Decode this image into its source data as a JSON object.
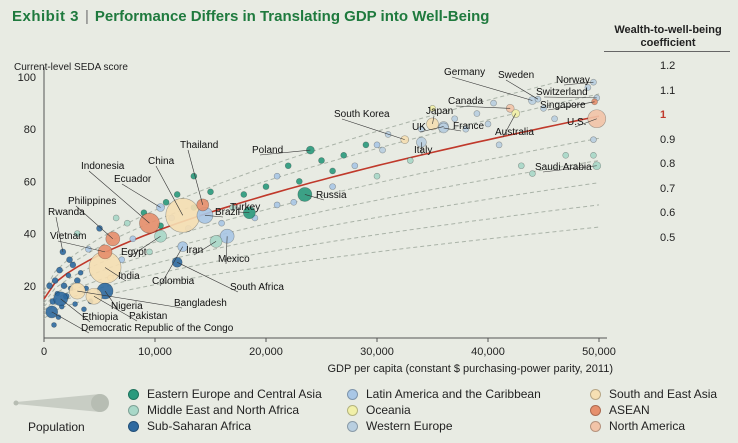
{
  "header": {
    "exhibit": "Exhibit 3",
    "title": "Performance Differs in Translating GDP into Well-Being",
    "coef_title_line1": "Wealth-to-well-being",
    "coef_title_line2": "coefficient"
  },
  "colors": {
    "eeca": "#2a9a7d",
    "mena": "#a8d8c8",
    "ssa": "#2e6aa0",
    "latam": "#a9c7e6",
    "oceania": "#f1f0a8",
    "weur": "#b9cfe0",
    "sea": "#f6dfb3",
    "asean": "#e68f6c",
    "na": "#f2c4a8",
    "curve": "#c0392b",
    "guide": "#aab3a8"
  },
  "chart_data": {
    "type": "scatter",
    "xlabel": "GDP per capita (constant $ purchasing-power parity, 2011)",
    "ylabel": "Current-level SEDA score",
    "xlim": [
      0,
      50000
    ],
    "ylim": [
      0,
      100
    ],
    "xticks": [
      0,
      10000,
      20000,
      30000,
      40000,
      50000
    ],
    "xtick_labels": [
      "0",
      "10,000",
      "20,000",
      "30,000",
      "40,000",
      "50,000"
    ],
    "yticks": [
      20,
      40,
      60,
      80,
      100
    ],
    "ytick_labels": [
      "20",
      "40",
      "60",
      "80",
      "100"
    ],
    "coefficients": [
      "1.2",
      "1.1",
      "1",
      "0.9",
      "0.8",
      "0.7",
      "0.6",
      "0.5"
    ],
    "highlight_coefficient": "1",
    "regions": [
      {
        "key": "eeca",
        "label": "Eastern Europe and Central Asia"
      },
      {
        "key": "latam",
        "label": "Latin America and the Caribbean"
      },
      {
        "key": "sea",
        "label": "South and East Asia"
      },
      {
        "key": "mena",
        "label": "Middle East and North Africa"
      },
      {
        "key": "oceania",
        "label": "Oceania"
      },
      {
        "key": "asean",
        "label": "ASEAN"
      },
      {
        "key": "ssa",
        "label": "Sub-Saharan Africa"
      },
      {
        "key": "weur",
        "label": "Western Europe"
      },
      {
        "key": "na",
        "label": "North America"
      }
    ],
    "population_label": "Population",
    "labeled_countries": [
      {
        "name": "Germany",
        "x": 44000,
        "y": 91,
        "r": 4,
        "region": "weur"
      },
      {
        "name": "Sweden",
        "x": 44500,
        "y": 91.5,
        "r": 3,
        "region": "weur"
      },
      {
        "name": "Norway",
        "x": 49500,
        "y": 98,
        "r": 3,
        "region": "weur"
      },
      {
        "name": "Switzerland",
        "x": 49800,
        "y": 92,
        "r": 3,
        "region": "weur"
      },
      {
        "name": "Singapore",
        "x": 49600,
        "y": 90.5,
        "r": 3,
        "region": "asean"
      },
      {
        "name": "Canada",
        "x": 42000,
        "y": 88,
        "r": 4,
        "region": "na"
      },
      {
        "name": "Australia",
        "x": 42500,
        "y": 86,
        "r": 4,
        "region": "oceania"
      },
      {
        "name": "U.S.",
        "x": 49800,
        "y": 84,
        "r": 9,
        "region": "na"
      },
      {
        "name": "South Korea",
        "x": 32500,
        "y": 76,
        "r": 4,
        "region": "sea"
      },
      {
        "name": "Japan",
        "x": 35000,
        "y": 82,
        "r": 6,
        "region": "sea"
      },
      {
        "name": "UK",
        "x": 36000,
        "y": 81,
        "r": 5,
        "region": "weur"
      },
      {
        "name": "France",
        "x": 36000,
        "y": 80.5,
        "r": 5,
        "region": "weur"
      },
      {
        "name": "Italy",
        "x": 34000,
        "y": 75,
        "r": 5,
        "region": "weur"
      },
      {
        "name": "Saudi Arabia",
        "x": 49800,
        "y": 66,
        "r": 4,
        "region": "mena"
      },
      {
        "name": "Poland",
        "x": 24000,
        "y": 72,
        "r": 4,
        "region": "eeca"
      },
      {
        "name": "Russia",
        "x": 23500,
        "y": 55,
        "r": 7,
        "region": "eeca"
      },
      {
        "name": "Thailand",
        "x": 14300,
        "y": 51,
        "r": 6,
        "region": "asean"
      },
      {
        "name": "China",
        "x": 12500,
        "y": 47,
        "r": 17,
        "region": "sea"
      },
      {
        "name": "Indonesia",
        "x": 9500,
        "y": 44,
        "r": 10,
        "region": "asean"
      },
      {
        "name": "Ecuador",
        "x": 10500,
        "y": 50,
        "r": 4,
        "region": "latam"
      },
      {
        "name": "Philippines",
        "x": 6200,
        "y": 38,
        "r": 7,
        "region": "asean"
      },
      {
        "name": "Brazil",
        "x": 14500,
        "y": 47,
        "r": 8,
        "region": "latam"
      },
      {
        "name": "Turkey",
        "x": 18500,
        "y": 48,
        "r": 6,
        "region": "eeca"
      },
      {
        "name": "Egypt",
        "x": 10500,
        "y": 39,
        "r": 6,
        "region": "mena"
      },
      {
        "name": "Iran",
        "x": 15500,
        "y": 37,
        "r": 6,
        "region": "mena"
      },
      {
        "name": "Mexico",
        "x": 16500,
        "y": 39,
        "r": 7,
        "region": "latam"
      },
      {
        "name": "Rwanda",
        "x": 1700,
        "y": 33,
        "r": 3,
        "region": "ssa"
      },
      {
        "name": "Vietnam",
        "x": 5500,
        "y": 33,
        "r": 7,
        "region": "asean"
      },
      {
        "name": "India",
        "x": 5500,
        "y": 27,
        "r": 16,
        "region": "sea"
      },
      {
        "name": "Colombia",
        "x": 12500,
        "y": 35,
        "r": 5,
        "region": "latam"
      },
      {
        "name": "South Africa",
        "x": 12000,
        "y": 29,
        "r": 5,
        "region": "ssa"
      },
      {
        "name": "Nigeria",
        "x": 5500,
        "y": 18,
        "r": 8,
        "region": "ssa"
      },
      {
        "name": "Bangladesh",
        "x": 3000,
        "y": 18,
        "r": 8,
        "region": "sea"
      },
      {
        "name": "Ethiopia",
        "x": 1500,
        "y": 15,
        "r": 7,
        "region": "ssa"
      },
      {
        "name": "Pakistan",
        "x": 4500,
        "y": 16,
        "r": 8,
        "region": "sea"
      },
      {
        "name": "Democratic Republic of the Congo",
        "x": 700,
        "y": 10,
        "r": 6,
        "region": "ssa"
      }
    ],
    "other_points": [
      [
        500,
        20,
        "ssa",
        3
      ],
      [
        800,
        14,
        "ssa",
        3
      ],
      [
        1000,
        22,
        "ssa",
        3
      ],
      [
        1200,
        17,
        "ssa",
        2.5
      ],
      [
        1400,
        26,
        "ssa",
        3
      ],
      [
        1600,
        12,
        "ssa",
        2.5
      ],
      [
        1800,
        20,
        "ssa",
        3
      ],
      [
        2000,
        16,
        "ssa",
        3
      ],
      [
        2200,
        24,
        "ssa",
        2.5
      ],
      [
        2400,
        19,
        "ssa",
        2.5
      ],
      [
        2600,
        28,
        "ssa",
        3
      ],
      [
        2800,
        13,
        "ssa",
        2.5
      ],
      [
        3000,
        22,
        "ssa",
        3
      ],
      [
        3300,
        25,
        "ssa",
        2.5
      ],
      [
        3600,
        11,
        "ssa",
        2.5
      ],
      [
        900,
        5,
        "ssa",
        2.5
      ],
      [
        1300,
        8,
        "ssa",
        2.5
      ],
      [
        2300,
        30,
        "ssa",
        3
      ],
      [
        3800,
        19,
        "ssa",
        2.5
      ],
      [
        4200,
        14,
        "ssa",
        2.5
      ],
      [
        3000,
        40,
        "mena",
        3
      ],
      [
        4000,
        34,
        "latam",
        3
      ],
      [
        5000,
        42,
        "ssa",
        3
      ],
      [
        6000,
        23,
        "sea",
        3
      ],
      [
        7000,
        30,
        "latam",
        3
      ],
      [
        7500,
        44,
        "mena",
        3
      ],
      [
        8000,
        38,
        "latam",
        3
      ],
      [
        9000,
        48,
        "eeca",
        3
      ],
      [
        9500,
        33,
        "mena",
        3
      ],
      [
        10500,
        43,
        "eeca",
        3
      ],
      [
        11000,
        52,
        "eeca",
        3
      ],
      [
        11500,
        46,
        "latam",
        3
      ],
      [
        12000,
        55,
        "eeca",
        3
      ],
      [
        13000,
        42,
        "latam",
        3
      ],
      [
        13500,
        50,
        "eeca",
        3
      ],
      [
        15000,
        56,
        "eeca",
        3
      ],
      [
        16000,
        44,
        "latam",
        3
      ],
      [
        17000,
        50,
        "mena",
        3
      ],
      [
        18000,
        55,
        "eeca",
        3
      ],
      [
        19000,
        46,
        "latam",
        3
      ],
      [
        20000,
        58,
        "eeca",
        3
      ],
      [
        21000,
        62,
        "latam",
        3
      ],
      [
        22000,
        66,
        "eeca",
        3
      ],
      [
        22500,
        52,
        "latam",
        3
      ],
      [
        23000,
        60,
        "eeca",
        3
      ],
      [
        25000,
        68,
        "eeca",
        3
      ],
      [
        26000,
        64,
        "eeca",
        3
      ],
      [
        27000,
        70,
        "eeca",
        3
      ],
      [
        28000,
        66,
        "latam",
        3
      ],
      [
        29000,
        74,
        "eeca",
        3
      ],
      [
        30000,
        62,
        "mena",
        3
      ],
      [
        30500,
        72,
        "weur",
        3
      ],
      [
        31000,
        78,
        "weur",
        3
      ],
      [
        33000,
        68,
        "mena",
        3
      ],
      [
        34000,
        80,
        "weur",
        3
      ],
      [
        37000,
        84,
        "weur",
        3
      ],
      [
        38000,
        80,
        "weur",
        3
      ],
      [
        39000,
        86,
        "weur",
        3
      ],
      [
        40000,
        82,
        "weur",
        3
      ],
      [
        41000,
        74,
        "weur",
        3
      ],
      [
        43000,
        66,
        "mena",
        3
      ],
      [
        44000,
        63,
        "mena",
        3
      ],
      [
        45000,
        88,
        "weur",
        3
      ],
      [
        46000,
        84,
        "weur",
        3
      ],
      [
        47000,
        70,
        "mena",
        3
      ],
      [
        49500,
        70,
        "mena",
        3
      ],
      [
        49500,
        76,
        "weur",
        3
      ],
      [
        49000,
        96,
        "weur",
        3
      ],
      [
        40500,
        90,
        "weur",
        3
      ],
      [
        35000,
        88,
        "oceania",
        3
      ],
      [
        30000,
        74,
        "latam",
        3
      ],
      [
        26000,
        58,
        "latam",
        3
      ],
      [
        21000,
        51,
        "latam",
        3
      ],
      [
        13500,
        62,
        "eeca",
        3
      ],
      [
        6500,
        46,
        "mena",
        3
      ]
    ]
  }
}
